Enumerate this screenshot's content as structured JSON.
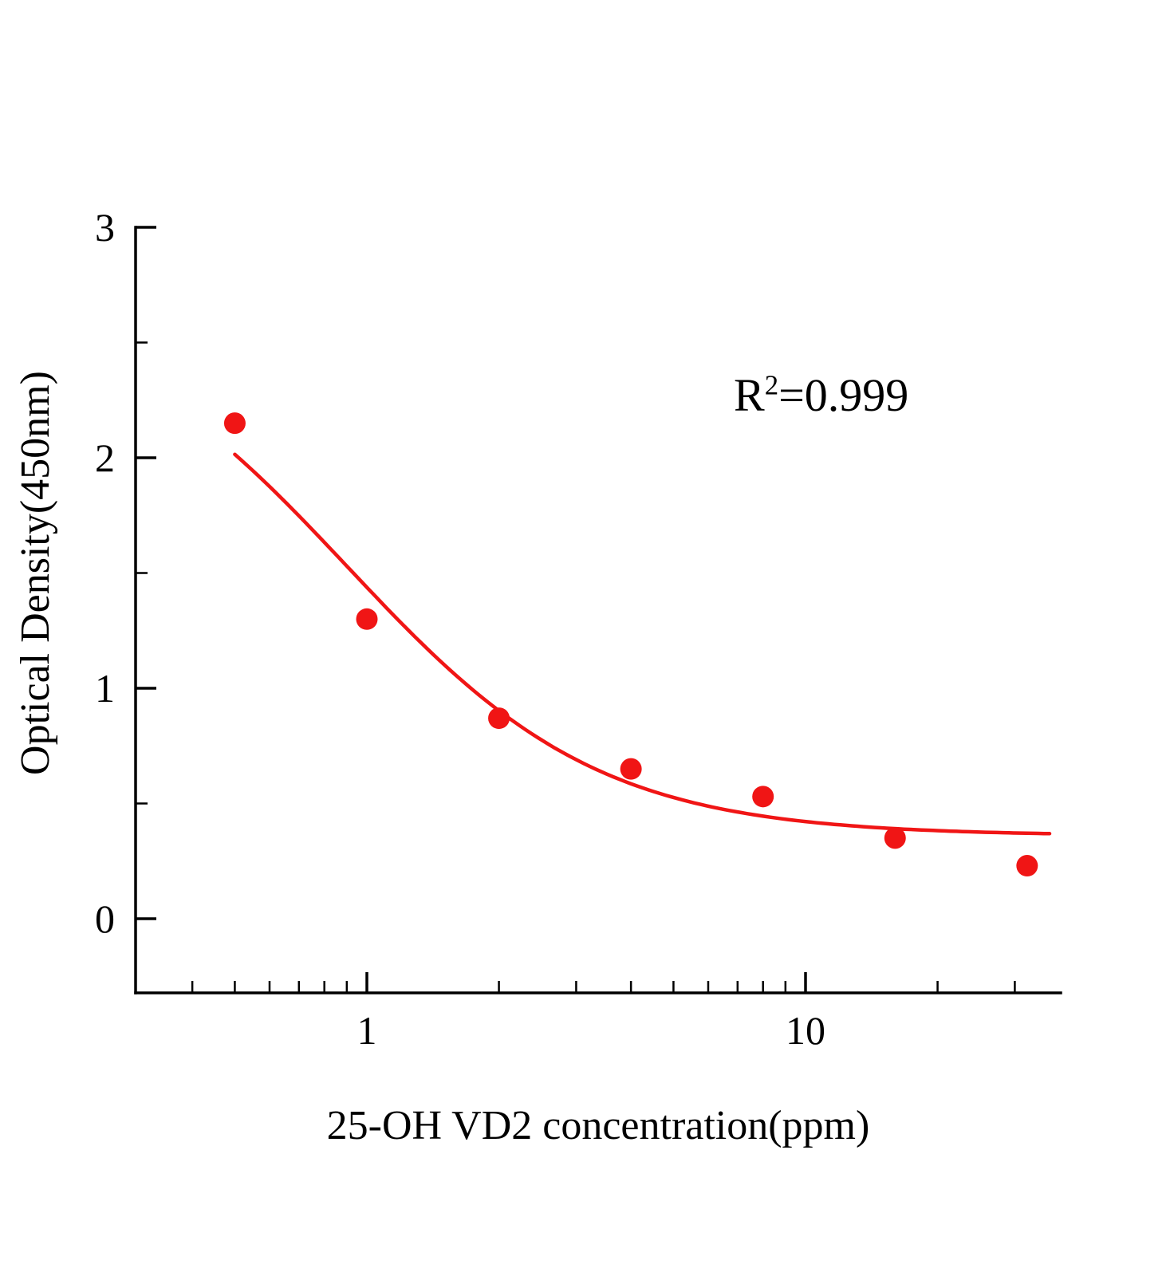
{
  "chart_data": {
    "type": "scatter",
    "title": "",
    "xlabel": "25-OH VD2 concentration(ppm)",
    "ylabel": "Optical Density(450nm)",
    "x_scale": "log",
    "xlim": [
      0.3,
      38
    ],
    "ylim": [
      -0.32,
      3
    ],
    "grid": false,
    "axis_color": "#000000",
    "series": [
      {
        "type": "scatter",
        "color": "#f01515",
        "marker": "circle",
        "x": [
          0.5,
          1,
          2,
          4,
          8,
          16,
          32
        ],
        "y": [
          2.15,
          1.3,
          0.87,
          0.65,
          0.53,
          0.35,
          0.23
        ]
      }
    ],
    "fit_curve": {
      "model": "4PL",
      "color": "#f01515",
      "params": {
        "a": 2.7,
        "b": 1.5,
        "c": 0.9,
        "d": 0.36
      },
      "x_range": [
        0.5,
        36
      ]
    },
    "annotation": {
      "base": "R",
      "sup": "2",
      "rest": "=0.999"
    },
    "x_ticks": [
      {
        "value": 1,
        "label": "1"
      },
      {
        "value": 10,
        "label": "10"
      }
    ],
    "x_minor_ticks": [
      0.4,
      0.5,
      0.6,
      0.7,
      0.8,
      0.9,
      2,
      3,
      4,
      5,
      6,
      7,
      8,
      9,
      20,
      30
    ],
    "y_ticks": [
      {
        "value": 0,
        "label": "0"
      },
      {
        "value": 1,
        "label": "1"
      },
      {
        "value": 2,
        "label": "2"
      },
      {
        "value": 3,
        "label": "3"
      }
    ],
    "y_minor_ticks": [
      0.5,
      1.5,
      2.5
    ]
  }
}
